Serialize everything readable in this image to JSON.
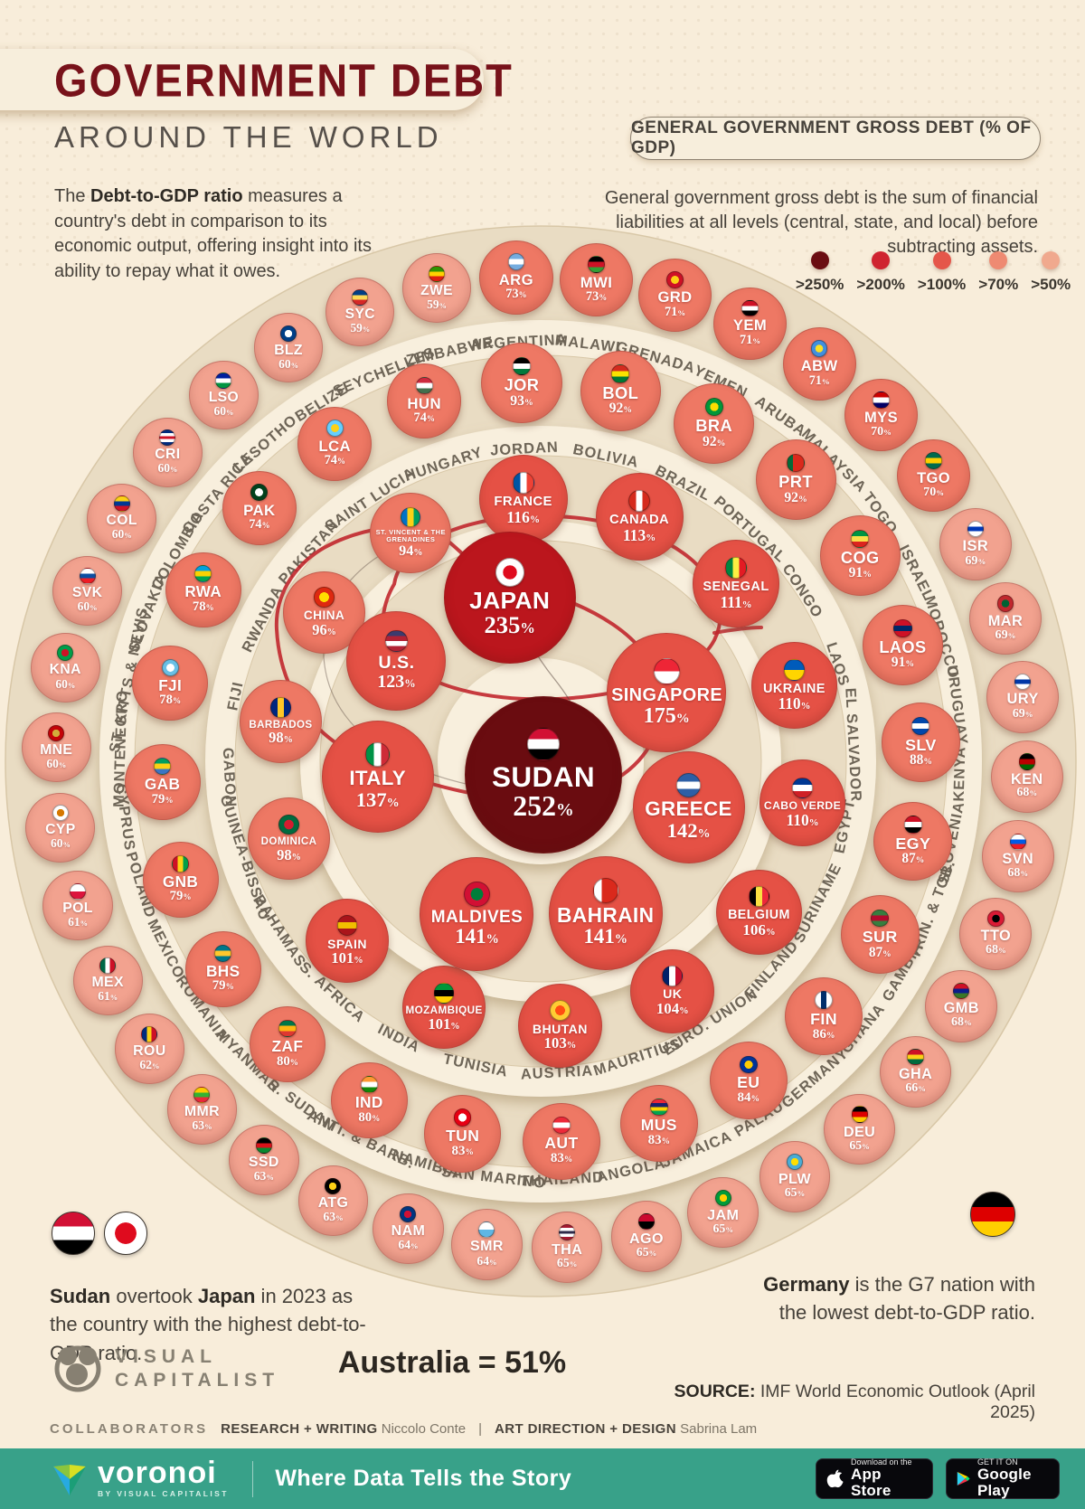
{
  "header": {
    "title": "GOVERNMENT DEBT",
    "subtitle": "AROUND THE WORLD",
    "intro_t1": "The ",
    "intro_b": "Debt-to-GDP ratio",
    "intro_t2": " measures a country's debt in comparison to its economic output, offering insight into its ability to repay what it owes.",
    "right_pill": "GENERAL GOVERNMENT GROSS DEBT (% OF GDP)",
    "right_text": "General government gross debt is the sum of financial liabilities at all levels (central, state, and local) before subtracting assets."
  },
  "legend": {
    "items": [
      {
        "label": ">250%",
        "color": "#6b0d12"
      },
      {
        "label": ">200%",
        "color": "#cf2330"
      },
      {
        "label": ">100%",
        "color": "#e5564a"
      },
      {
        "label": ">70%",
        "color": "#ee8a72"
      },
      {
        "label": ">50%",
        "color": "#f0a98e"
      }
    ]
  },
  "chart_data": {
    "type": "scatter",
    "variant": "concentric-bubble",
    "title": "General government gross debt (% of GDP)",
    "unit": "%",
    "legend_bins": [
      ">250%",
      ">200%",
      ">100%",
      ">70%",
      ">50%"
    ],
    "center": {
      "code": "SUDAN",
      "name": "Sudan",
      "value": 252,
      "flag": "h|#d21034|#ffffff|#000000"
    },
    "rings": [
      [
        {
          "code": "JAPAN",
          "value": 235,
          "flag": "d|#ffffff|#df0b1e"
        },
        {
          "code": "SINGAPORE",
          "value": 175,
          "flag": "h|#ee2536|#ffffff"
        },
        {
          "code": "GREECE",
          "value": 142,
          "flag": "h|#2d5fa6|#ffffff|#2d5fa6"
        },
        {
          "code": "BAHRAIN",
          "value": 141,
          "flag": "v|#ffffff|#da291c|#da291c"
        },
        {
          "code": "MALDIVES",
          "value": 141,
          "flag": "d|#d21034|#007e3a"
        },
        {
          "code": "ITALY",
          "value": 137,
          "flag": "v|#009246|#ffffff|#ce2b37"
        },
        {
          "code": "U.S.",
          "value": 123,
          "flag": "h|#3c3b6e|#b22234|#ffffff|#b22234"
        }
      ],
      [
        {
          "code": "FRANCE",
          "value": 116,
          "flag": "v|#0055a4|#ffffff|#ef4135"
        },
        {
          "code": "CANADA",
          "value": 113,
          "flag": "v|#d52b1e|#ffffff|#d52b1e"
        },
        {
          "code": "SENEGAL",
          "value": 111,
          "flag": "v|#00853f|#fdef42|#e31b23"
        },
        {
          "code": "UKRAINE",
          "value": 110,
          "flag": "h|#005bbb|#ffd500"
        },
        {
          "code": "CABO VERDE",
          "value": 110,
          "flag": "h|#003893|#ffffff|#cf2027"
        },
        {
          "code": "BELGIUM",
          "value": 106,
          "flag": "v|#000000|#fae042|#ed2939"
        },
        {
          "code": "UK",
          "value": 104,
          "flag": "v|#012169|#ffffff|#c8102e"
        },
        {
          "code": "BHUTAN",
          "value": 103,
          "flag": "d|#ffcc33|#ff4e12"
        },
        {
          "code": "MOZAMBIQUE",
          "value": 101,
          "flag": "h|#009739|#000000|#ffd100"
        },
        {
          "code": "SPAIN",
          "value": 101,
          "flag": "h|#aa151b|#f1bf00|#aa151b"
        },
        {
          "code": "DOMINICA",
          "value": 98,
          "flag": "d|#006b3f|#d41c30"
        },
        {
          "code": "BARBADOS",
          "value": 98,
          "flag": "v|#00267f|#ffc726|#00267f"
        },
        {
          "code": "CHINA",
          "value": 96,
          "flag": "d|#de2910|#ffde00"
        },
        {
          "code": "ST. VINCENT & THE GRENADINES",
          "value": 94,
          "flag": "v|#0072c6|#fcd116|#009e60"
        }
      ],
      [
        {
          "code": "JOR",
          "label": "JORDAN",
          "value": 93,
          "flag": "h|#000000|#ffffff|#007a3d"
        },
        {
          "code": "BOL",
          "label": "BOLIVIA",
          "value": 92,
          "flag": "h|#d52b1e|#f9e300|#007934"
        },
        {
          "code": "BRA",
          "label": "BRAZIL",
          "value": 92,
          "flag": "d|#009739|#fedd00"
        },
        {
          "code": "PRT",
          "label": "PORTUGAL",
          "value": 92,
          "flag": "v|#046a38|#da291c|#da291c"
        },
        {
          "code": "COG",
          "label": "CONGO",
          "value": 91,
          "flag": "h|#009543|#fbde4a|#dc241f"
        },
        {
          "code": "LAOS",
          "label": "LAOS",
          "value": 91,
          "flag": "h|#ce1126|#002868|#ce1126"
        },
        {
          "code": "SLV",
          "label": "EL SALVADOR",
          "value": 88,
          "flag": "h|#0047ab|#ffffff|#0047ab"
        },
        {
          "code": "EGY",
          "label": "EGYPT",
          "value": 87,
          "flag": "h|#ce1126|#ffffff|#000000"
        },
        {
          "code": "SUR",
          "label": "SURINAME",
          "value": 87,
          "flag": "h|#377e3f|#b40a2d|#377e3f"
        },
        {
          "code": "FIN",
          "label": "FINLAND",
          "value": 86,
          "flag": "v|#ffffff|#002f6c|#ffffff"
        },
        {
          "code": "EU",
          "label": "EURO. UNION",
          "value": 84,
          "flag": "d|#003399|#ffcc00"
        },
        {
          "code": "MUS",
          "label": "MAURITIUS",
          "value": 83,
          "flag": "h|#ea2839|#1a206d|#ffd500|#00a551"
        },
        {
          "code": "AUT",
          "label": "AUSTRIA",
          "value": 83,
          "flag": "h|#ed2939|#ffffff|#ed2939"
        },
        {
          "code": "TUN",
          "label": "TUNISIA",
          "value": 83,
          "flag": "d|#e70013|#ffffff"
        },
        {
          "code": "IND",
          "label": "INDIA",
          "value": 80,
          "flag": "h|#ff9933|#ffffff|#138808"
        },
        {
          "code": "ZAF",
          "label": "S. AFRICA",
          "value": 80,
          "flag": "h|#007749|#ffb612|#de3831"
        },
        {
          "code": "BHS",
          "label": "BAHAMAS",
          "value": 79,
          "flag": "h|#00778b|#ffc72c|#00778b"
        },
        {
          "code": "GNB",
          "label": "GUINEA-BISSAU",
          "value": 79,
          "flag": "v|#ce1126|#fcd116|#009e49"
        },
        {
          "code": "GAB",
          "label": "GABON",
          "value": 79,
          "flag": "h|#009e60|#fcd116|#3a75c4"
        },
        {
          "code": "FJI",
          "label": "FIJI",
          "value": 78,
          "flag": "d|#68bfe5|#ffffff"
        },
        {
          "code": "RWA",
          "label": "RWANDA",
          "value": 78,
          "flag": "h|#00a1de|#fad201|#00a651"
        },
        {
          "code": "PAK",
          "label": "PAKISTAN",
          "value": 74,
          "flag": "d|#01411c|#ffffff"
        },
        {
          "code": "LCA",
          "label": "SAINT LUCIA",
          "value": 74,
          "flag": "d|#65cfff|#fcd116"
        },
        {
          "code": "HUN",
          "label": "HUNGARY",
          "value": 74,
          "flag": "h|#cd2a3e|#ffffff|#436f4d"
        }
      ],
      [
        {
          "code": "ARG",
          "label": "ARGENTINA",
          "value": 73,
          "flag": "h|#74acdf|#ffffff|#74acdf"
        },
        {
          "code": "MWI",
          "label": "MALAWI",
          "value": 73,
          "flag": "h|#000000|#ce1126|#339e35"
        },
        {
          "code": "GRD",
          "label": "GRENADA",
          "value": 71,
          "flag": "d|#ce1126|#fcd116"
        },
        {
          "code": "YEM",
          "label": "YEMEN",
          "value": 71,
          "flag": "h|#ce1126|#ffffff|#000000"
        },
        {
          "code": "ABW",
          "label": "ARUBA",
          "value": 71,
          "flag": "d|#418fde|#fbe122"
        },
        {
          "code": "MYS",
          "label": "MALAYSIA",
          "value": 70,
          "flag": "h|#cc0001|#ffffff|#010066"
        },
        {
          "code": "TGO",
          "label": "TOGO",
          "value": 70,
          "flag": "h|#006a4e|#ffce00|#006a4e"
        },
        {
          "code": "ISR",
          "label": "ISRAEL",
          "value": 69,
          "flag": "h|#ffffff|#0038b8|#ffffff"
        },
        {
          "code": "MAR",
          "label": "MOROCCO",
          "value": 69,
          "flag": "d|#c1272d|#006233"
        },
        {
          "code": "URY",
          "label": "URUGUAY",
          "value": 69,
          "flag": "h|#ffffff|#0038a8|#ffffff"
        },
        {
          "code": "KEN",
          "label": "KENYA",
          "value": 68,
          "flag": "h|#000000|#bb0000|#006600"
        },
        {
          "code": "SVN",
          "label": "SLOVENIA",
          "value": 68,
          "flag": "h|#ffffff|#005ce5|#ed1c24"
        },
        {
          "code": "TTO",
          "label": "TRIN. & TOB.",
          "value": 68,
          "flag": "d|#da1a35|#000000"
        },
        {
          "code": "GMB",
          "label": "GAMBIA",
          "value": 68,
          "flag": "h|#ce1126|#0c1c8c|#3a7728"
        },
        {
          "code": "GHA",
          "label": "GHANA",
          "value": 66,
          "flag": "h|#ce1126|#fcd116|#006b3f"
        },
        {
          "code": "DEU",
          "label": "GERMANY",
          "value": 65,
          "flag": "h|#000000|#dd0000|#ffce00"
        },
        {
          "code": "PLW",
          "label": "PALAU",
          "value": 65,
          "flag": "d|#4aadd6|#ffde00"
        },
        {
          "code": "JAM",
          "label": "JAMAICA",
          "value": 65,
          "flag": "d|#009b3a|#fed100"
        },
        {
          "code": "AGO",
          "label": "ANGOLA",
          "value": 65,
          "flag": "h|#cc092f|#000000"
        },
        {
          "code": "THA",
          "label": "THAILAND",
          "value": 65,
          "flag": "h|#a51931|#ffffff|#2d2a4a|#ffffff|#a51931"
        },
        {
          "code": "SMR",
          "label": "SAN MARINO",
          "value": 64,
          "flag": "h|#ffffff|#5eb6e4"
        },
        {
          "code": "NAM",
          "label": "NAMIBIA",
          "value": 64,
          "flag": "d|#003580|#d21034"
        },
        {
          "code": "ATG",
          "label": "ANTI. & BARB.",
          "value": 63,
          "flag": "d|#000000|#fcd116"
        },
        {
          "code": "SSD",
          "label": "S. SUDAN",
          "value": 63,
          "flag": "h|#000000|#da121a|#078930"
        },
        {
          "code": "MMR",
          "label": "MYANMAR",
          "value": 63,
          "flag": "h|#fecb00|#34b233|#ea2839"
        },
        {
          "code": "ROU",
          "label": "ROMANIA",
          "value": 62,
          "flag": "v|#002b7f|#fcd116|#ce1126"
        },
        {
          "code": "MEX",
          "label": "MEXICO",
          "value": 61,
          "flag": "v|#006847|#ffffff|#ce1126"
        },
        {
          "code": "POL",
          "label": "POLAND",
          "value": 61,
          "flag": "h|#ffffff|#dc143c"
        },
        {
          "code": "CYP",
          "label": "CYPRUS",
          "value": 60,
          "flag": "d|#ffffff|#d57800"
        },
        {
          "code": "MNE",
          "label": "MONTENEGRO",
          "value": 60,
          "flag": "d|#c40308|#d3ae3b"
        },
        {
          "code": "KNA",
          "label": "ST. KITTS & NEVIS",
          "value": 60,
          "flag": "d|#009e49|#ce1126"
        },
        {
          "code": "SVK",
          "label": "SLOVAKIA",
          "value": 60,
          "flag": "h|#ffffff|#0b4ea2|#ee1c25"
        },
        {
          "code": "COL",
          "label": "COLOMBIA",
          "value": 60,
          "flag": "h|#fcd116|#003893|#ce1126"
        },
        {
          "code": "CRI",
          "label": "COSTA RICA",
          "value": 60,
          "flag": "h|#002b7f|#ffffff|#ce1126|#ffffff|#002b7f"
        },
        {
          "code": "LSO",
          "label": "LESOTHO",
          "value": 60,
          "flag": "h|#00209f|#ffffff|#009543"
        },
        {
          "code": "BLZ",
          "label": "BELIZE",
          "value": 60,
          "flag": "d|#003f87|#ffffff"
        },
        {
          "code": "SYC",
          "label": "SEYCHELLES",
          "value": 59,
          "flag": "h|#003f87|#fcd856|#d62828"
        },
        {
          "code": "ZWE",
          "label": "ZIMBABWE",
          "value": 59,
          "flag": "h|#319400|#ffd200|#de2010"
        }
      ]
    ],
    "footnote_values": {
      "Australia": 51
    }
  },
  "annotations": {
    "sudan_flag": "h|#d21034|#ffffff|#000000",
    "japan_flag": "d|#ffffff|#df0b1e",
    "germany_flag": "h|#000000|#dd0000|#ffce00",
    "left_b1": "Sudan",
    "left_t1": " overtook ",
    "left_b2": "Japan",
    "left_t2": " in 2023 as the country with the highest debt-to-GDP ratio.",
    "right_b": "Germany",
    "right_t": " is the G7 nation with the lowest debt-to-GDP ratio.",
    "australia": "Australia = 51%",
    "source_label": "SOURCE:",
    "source_text": " IMF World Economic Outlook (April 2025)"
  },
  "branding": {
    "vc_line1": "VISUAL",
    "vc_line2": "CAPITALIST",
    "collab_label": "COLLABORATORS",
    "collab_r1b": "RESEARCH + WRITING",
    "collab_r1": "Niccolo Conte",
    "collab_sep": "|",
    "collab_r2b": "ART DIRECTION + DESIGN",
    "collab_r2": "Sabrina Lam"
  },
  "footer": {
    "brand": "voronoi",
    "brand_sub": "BY VISUAL CAPITALIST",
    "tagline": "Where Data Tells the Story",
    "appstore_top": "Download on the",
    "appstore_bottom": "App Store",
    "gplay_top": "GET IT ON",
    "gplay_bottom": "Google Play"
  }
}
